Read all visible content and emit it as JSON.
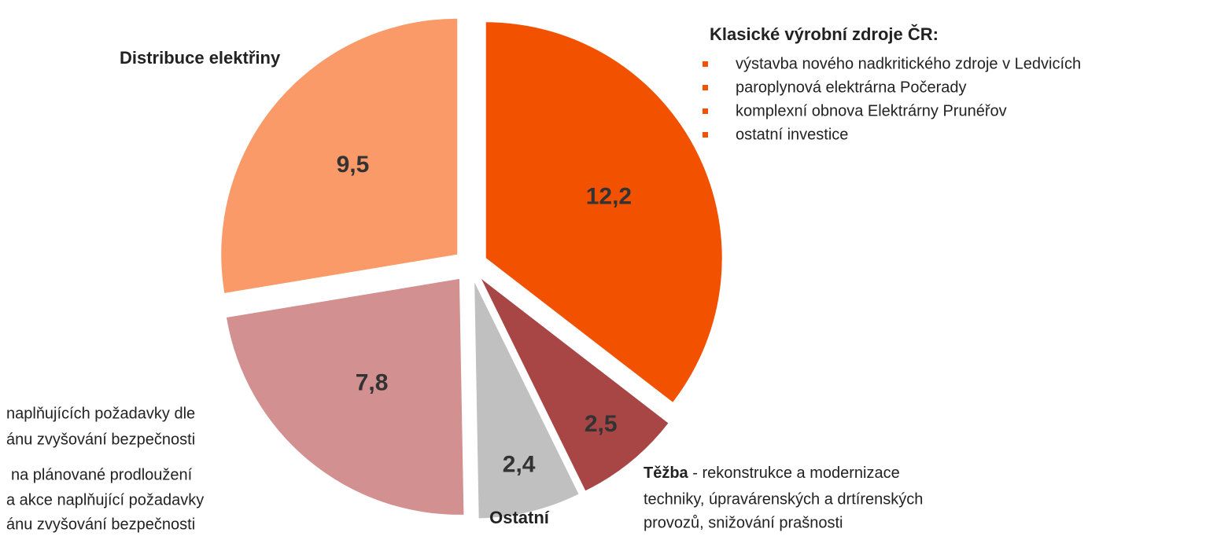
{
  "chart_data": {
    "type": "pie",
    "categories": [
      "Klasické výrobní zdroje ČR:",
      "Těžba",
      "Ostatní",
      null,
      "Distribuce elektřiny"
    ],
    "values": [
      12.2,
      2.5,
      2.4,
      7.8,
      9.5
    ],
    "value_labels": [
      "12,2",
      "2,5",
      "2,4",
      "7,8",
      "9,5"
    ],
    "colors": [
      "#f25100",
      "#a84545",
      "#c0c0c0",
      "#d39090",
      "#f99a68"
    ],
    "classic_sources_items": [
      "výstavba nového nadkritického zdroje v Ledvicích",
      "paroplynová elektrárna Počerady",
      "komplexní obnova Elektrárny Prunéřov",
      "ostatní investice"
    ],
    "mining_description": [
      "- rekonstrukce a modernizace",
      "techniky, úpravárenských a drtírenských",
      "provozů, snižování prašnosti"
    ],
    "left_annotation_lines": [
      "naplňujících požadavky dle",
      "ánu zvyšování bezpečnosti",
      "na plánované prodloužení",
      "a akce naplňující požadavky",
      "ánu zvyšování bezpečnosti"
    ]
  }
}
